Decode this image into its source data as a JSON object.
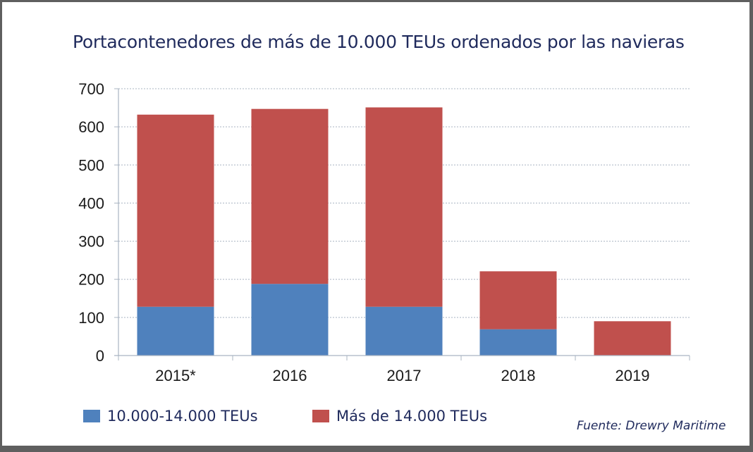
{
  "chart_data": {
    "type": "bar",
    "stacked": true,
    "title": "Portacontenedores de más de 10.000 TEUs ordenados por las navieras",
    "xlabel": "",
    "ylabel": "",
    "categories": [
      "2015*",
      "2016",
      "2017",
      "2018",
      "2019"
    ],
    "series": [
      {
        "name": "10.000-14.000 TEUs",
        "color": "#4f81bd",
        "values": [
          128,
          188,
          128,
          69,
          0
        ]
      },
      {
        "name": "Más de 14.000 TEUs",
        "color": "#c0504d",
        "values": [
          504,
          459,
          523,
          152,
          90
        ]
      }
    ],
    "totals": [
      632,
      647,
      651,
      221,
      90
    ],
    "ylim": [
      0,
      700
    ],
    "yticks": [
      0,
      100,
      200,
      300,
      400,
      500,
      600,
      700
    ],
    "grid": true,
    "legend_position": "bottom-left",
    "source": "Fuente: Drewry Maritime"
  }
}
